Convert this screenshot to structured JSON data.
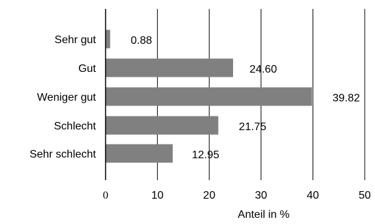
{
  "chart_data": {
    "type": "bar",
    "orientation": "horizontal",
    "categories": [
      "Sehr gut",
      "Gut",
      "Weniger gut",
      "Schlecht",
      "Sehr schlecht"
    ],
    "values": [
      0.88,
      24.6,
      39.82,
      21.75,
      12.95
    ],
    "value_labels": [
      "0.88",
      "24.60",
      "39.82",
      "21.75",
      "12.95"
    ],
    "xlabel": "Anteil in %",
    "ylabel": "",
    "xlim": [
      0,
      50
    ],
    "xticks": [
      "0",
      "10",
      "20",
      "30",
      "40",
      "50"
    ],
    "grid": "vertical",
    "bar_color": "#808080",
    "legend": "none"
  }
}
